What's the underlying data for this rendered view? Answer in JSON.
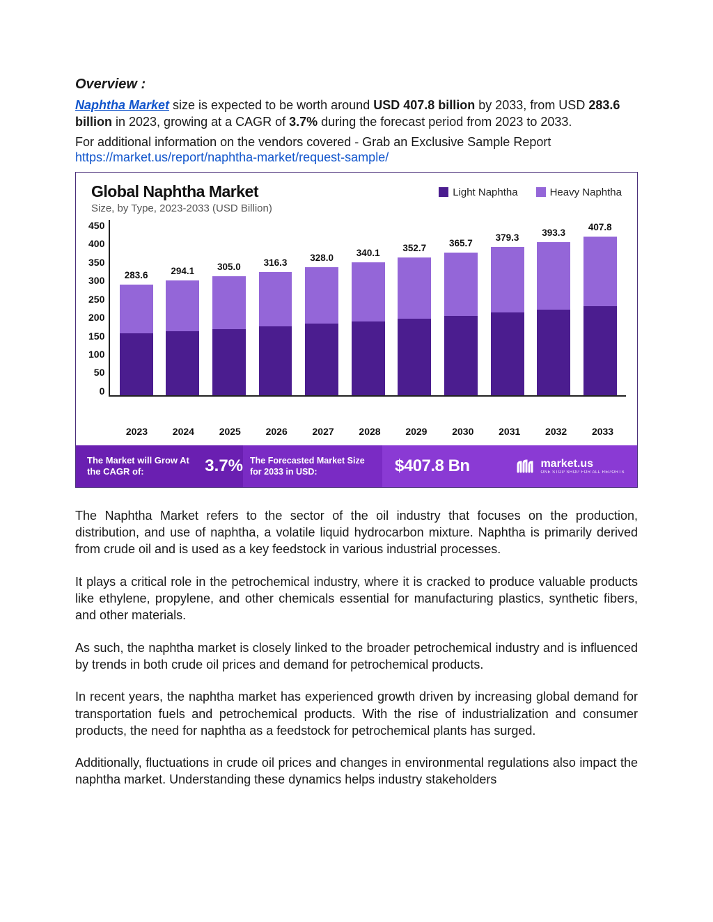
{
  "overview": {
    "heading": "Overview :",
    "link_text": "Naphtha Market",
    "intro_seg1": " size is expected to be worth around ",
    "bold1": "USD 407.8 billion",
    "intro_seg2": " by 2033, from USD ",
    "bold2": "283.6 billion",
    "intro_seg3": " in 2023, growing at a CAGR of ",
    "bold3": "3.7%",
    "intro_seg4": " during the forecast period from 2023 to 2033.",
    "vendor_line": "For additional information on the vendors covered - Grab an Exclusive Sample Report",
    "sample_url": "https://market.us/report/naphtha-market/request-sample/"
  },
  "chart": {
    "title": "Global Naphtha Market",
    "subtitle": "Size, by Type, 2023-2033 (USD Billion)",
    "legend": {
      "light": "Light Naphtha",
      "heavy": "Heavy Naphtha"
    },
    "colors": {
      "light": "#4b1d8f",
      "heavy": "#9466d8",
      "card_border": "#4a2f7a",
      "axis": "#222222",
      "title_color": "#111111",
      "subtitle_color": "#555555",
      "footer_left": "#6a1fb1",
      "footer_mid": "#7a2bc4",
      "footer_right": "#8a3ad4",
      "footer_text": "#ffffff"
    },
    "y_axis": {
      "max": 450,
      "ticks": [
        "450",
        "400",
        "350",
        "300",
        "250",
        "200",
        "150",
        "100",
        "50",
        "0"
      ]
    },
    "years": [
      "2023",
      "2024",
      "2025",
      "2026",
      "2027",
      "2028",
      "2029",
      "2030",
      "2031",
      "2032",
      "2033"
    ],
    "totals": [
      283.6,
      294.1,
      305.0,
      316.3,
      328.0,
      340.1,
      352.7,
      365.7,
      379.3,
      393.3,
      407.8
    ],
    "light_values": [
      158,
      164,
      170,
      177,
      183,
      190,
      197,
      204,
      212,
      220,
      228
    ],
    "heavy_values": [
      125.6,
      130.1,
      135.0,
      139.3,
      145.0,
      150.1,
      155.7,
      161.7,
      167.3,
      173.3,
      179.8
    ],
    "footer": {
      "left_text": "The Market will Grow At the CAGR of:",
      "cagr": "3.7%",
      "mid_text": "The Forecasted Market Size for 2033 in USD:",
      "value": "$407.8 Bn",
      "brand": "market.us",
      "brand_sub": "ONE STOP SHOP FOR ALL REPORTS"
    }
  },
  "body": {
    "p1": "The Naphtha Market refers to the sector of the oil industry that focuses on the production, distribution, and use of naphtha, a volatile liquid hydrocarbon mixture. Naphtha is primarily derived from crude oil and is used as a key feedstock in various industrial processes.",
    "p2": " It plays a critical role in the petrochemical industry, where it is cracked to produce valuable products like ethylene, propylene, and other chemicals essential for manufacturing plastics, synthetic fibers, and other materials.",
    "p3": "As such, the naphtha market is closely linked to the broader petrochemical industry and is influenced by trends in both crude oil prices and demand for petrochemical products.",
    "p4": "In recent years, the naphtha market has experienced growth driven by increasing global demand for transportation fuels and petrochemical products. With the rise of industrialization and consumer products, the need for naphtha as a feedstock for petrochemical plants has surged.",
    "p5": "Additionally, fluctuations in crude oil prices and changes in environmental regulations also impact the naphtha market. Understanding these dynamics helps industry stakeholders"
  }
}
